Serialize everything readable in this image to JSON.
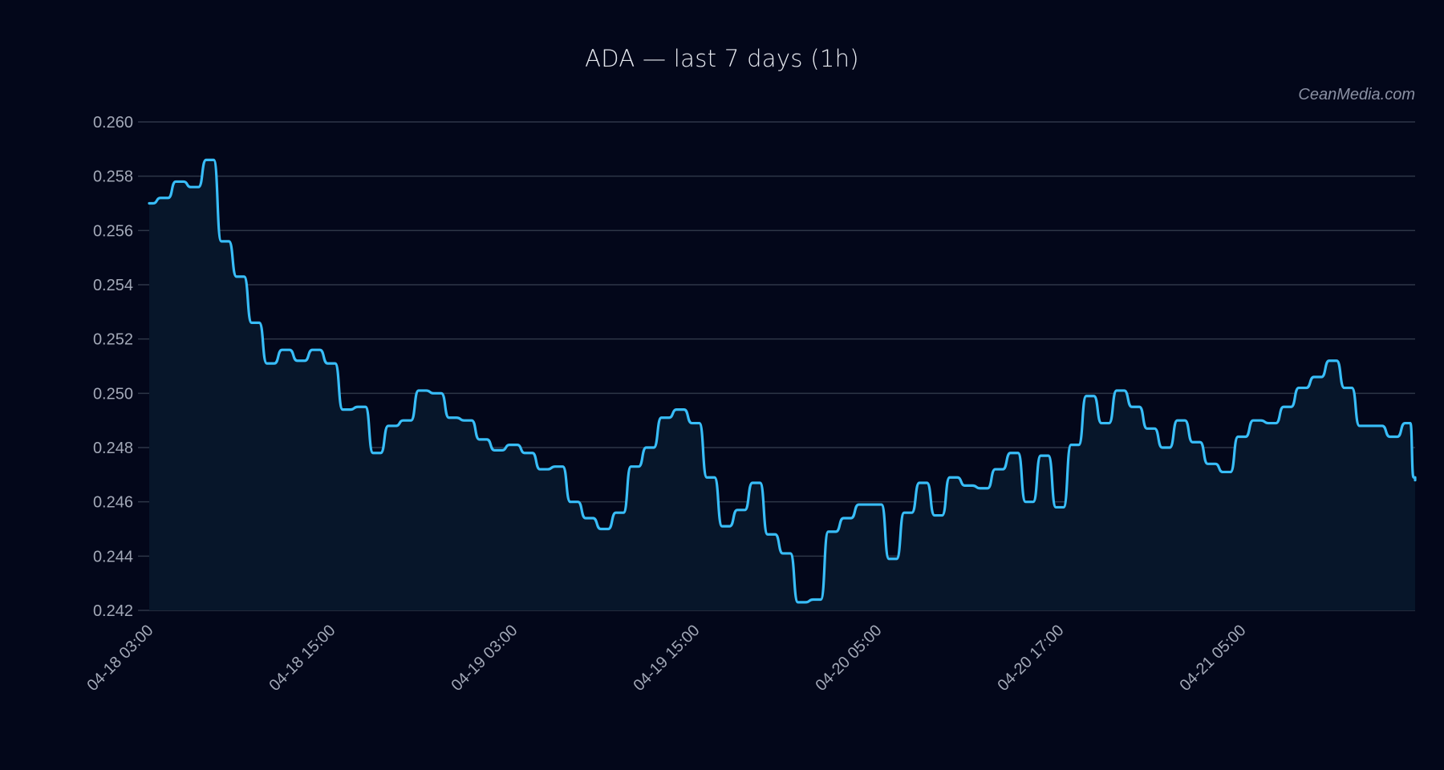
{
  "header": {
    "title": "ADA — last 7 days (1h)",
    "watermark": "CeanMedia.com"
  },
  "colors": {
    "background": "#03071a",
    "line": "#38bdf8",
    "area_fill": "#07162a",
    "grid": "#2e3747",
    "tick_text": "#a3a9b8",
    "title_text": "#e6e9f0"
  },
  "chart_data": {
    "type": "area",
    "title": "ADA — last 7 days (1h)",
    "xlabel": "",
    "ylabel": "",
    "ylim": [
      0.242,
      0.26
    ],
    "grid": true,
    "legend": null,
    "y_ticks": [
      "0.260",
      "0.258",
      "0.256",
      "0.254",
      "0.252",
      "0.250",
      "0.248",
      "0.246",
      "0.244",
      "0.242"
    ],
    "x_ticks": [
      {
        "index": 0,
        "label": "04-18 03:00"
      },
      {
        "index": 12,
        "label": "04-18 15:00"
      },
      {
        "index": 24,
        "label": "04-19 03:00"
      },
      {
        "index": 36,
        "label": "04-19 15:00"
      },
      {
        "index": 48,
        "label": "04-20 05:00"
      },
      {
        "index": 60,
        "label": "04-20 17:00"
      },
      {
        "index": 72,
        "label": "04-21 05:00"
      }
    ],
    "series": [
      {
        "name": "ADA",
        "values": [
          0.257,
          0.2572,
          0.2578,
          0.2576,
          0.2586,
          0.2556,
          0.2543,
          0.2526,
          0.2511,
          0.2516,
          0.2512,
          0.2516,
          0.2511,
          0.2494,
          0.2495,
          0.2478,
          0.2488,
          0.249,
          0.2501,
          0.25,
          0.2491,
          0.249,
          0.2483,
          0.2479,
          0.2481,
          0.2478,
          0.2472,
          0.2473,
          0.246,
          0.2454,
          0.245,
          0.2456,
          0.2473,
          0.248,
          0.2491,
          0.2494,
          0.2489,
          0.2469,
          0.2451,
          0.2457,
          0.2467,
          0.2448,
          0.2441,
          0.2423,
          0.2424,
          0.2449,
          0.2454,
          0.2459,
          0.2459,
          0.2439,
          0.2456,
          0.2467,
          0.2455,
          0.2469,
          0.2466,
          0.2465,
          0.2472,
          0.2478,
          0.246,
          0.2477,
          0.2458,
          0.2481,
          0.2499,
          0.2489,
          0.2501,
          0.2495,
          0.2487,
          0.248,
          0.249,
          0.2482,
          0.2474,
          0.2471,
          0.2484,
          0.249,
          0.2489,
          0.2495,
          0.2502,
          0.2506,
          0.2512,
          0.2502,
          0.2488,
          0.2488,
          0.2484,
          0.2489,
          0.2469,
          0.2468
        ]
      }
    ]
  }
}
